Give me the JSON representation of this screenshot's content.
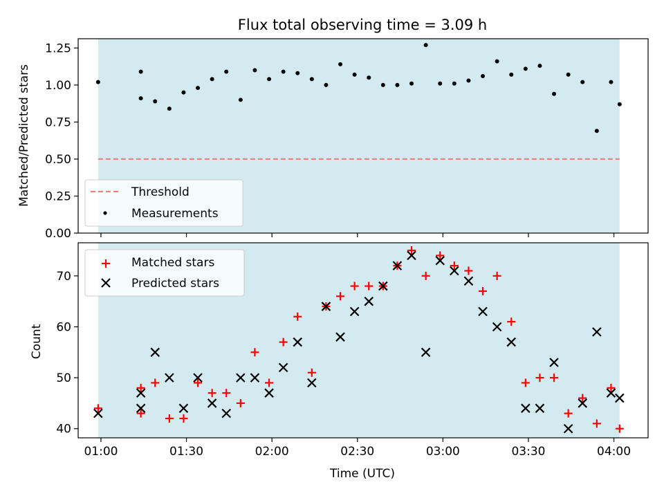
{
  "chart_data": [
    {
      "type": "scatter",
      "title": "Flux total observing time = 3.09 h",
      "ylabel": "Matched/Predicted stars",
      "xlabel": "",
      "ylim": [
        0.0,
        1.3125
      ],
      "yticks": [
        "0.00",
        "0.25",
        "0.50",
        "0.75",
        "1.00",
        "1.25"
      ],
      "xlim": [
        "00:52",
        "04:12"
      ],
      "shaded_span": [
        "00:59",
        "04:02"
      ],
      "shade_color": "#d3eaf0",
      "threshold": {
        "name": "Threshold",
        "value": 0.5,
        "color": "#f08080",
        "style": "dashed"
      },
      "series": [
        {
          "name": "Measurements",
          "color": "#000000",
          "x": [
            "00:59",
            "01:14",
            "01:14",
            "01:19",
            "01:24",
            "01:29",
            "01:34",
            "01:39",
            "01:44",
            "01:49",
            "01:54",
            "01:59",
            "02:04",
            "02:09",
            "02:14",
            "02:19",
            "02:24",
            "02:29",
            "02:34",
            "02:39",
            "02:44",
            "02:49",
            "02:54",
            "02:59",
            "03:04",
            "03:09",
            "03:14",
            "03:19",
            "03:24",
            "03:29",
            "03:34",
            "03:39",
            "03:44",
            "03:49",
            "03:54",
            "03:59",
            "04:02"
          ],
          "y": [
            1.02,
            1.09,
            0.91,
            0.89,
            0.84,
            0.95,
            0.98,
            1.04,
            1.09,
            0.9,
            1.1,
            1.04,
            1.09,
            1.08,
            1.04,
            1.0,
            1.14,
            1.07,
            1.05,
            1.0,
            1.0,
            1.01,
            1.27,
            1.01,
            1.01,
            1.03,
            1.06,
            1.16,
            1.07,
            1.11,
            1.13,
            0.94,
            1.07,
            1.02,
            0.69,
            1.02,
            0.87
          ]
        }
      ]
    },
    {
      "type": "scatter",
      "title": "",
      "ylabel": "Count",
      "xlabel": "Time (UTC)",
      "ylim": [
        38.2,
        76.5
      ],
      "yticks": [
        "40",
        "50",
        "60",
        "70"
      ],
      "xticks": [
        "01:00",
        "01:30",
        "02:00",
        "02:30",
        "03:00",
        "03:30",
        "04:00"
      ],
      "xlim": [
        "00:52",
        "04:12"
      ],
      "shaded_span": [
        "00:59",
        "04:02"
      ],
      "series": [
        {
          "name": "Matched stars",
          "marker": "+",
          "color": "#ff0000",
          "x": [
            "00:59",
            "01:14",
            "01:14",
            "01:19",
            "01:24",
            "01:29",
            "01:34",
            "01:39",
            "01:44",
            "01:49",
            "01:54",
            "01:59",
            "02:04",
            "02:09",
            "02:14",
            "02:19",
            "02:24",
            "02:29",
            "02:34",
            "02:39",
            "02:44",
            "02:49",
            "02:54",
            "02:59",
            "03:04",
            "03:09",
            "03:14",
            "03:19",
            "03:24",
            "03:29",
            "03:34",
            "03:39",
            "03:44",
            "03:49",
            "03:54",
            "03:59",
            "04:02"
          ],
          "y": [
            44,
            48,
            43,
            49,
            42,
            42,
            49,
            47,
            47,
            45,
            55,
            49,
            57,
            62,
            51,
            64,
            66,
            68,
            68,
            68,
            72,
            75,
            70,
            74,
            72,
            71,
            67,
            70,
            61,
            49,
            50,
            50,
            43,
            46,
            41,
            48,
            40
          ]
        },
        {
          "name": "Predicted stars",
          "marker": "x",
          "color": "#000000",
          "x": [
            "00:59",
            "01:14",
            "01:14",
            "01:19",
            "01:24",
            "01:29",
            "01:34",
            "01:39",
            "01:44",
            "01:49",
            "01:54",
            "01:59",
            "02:04",
            "02:09",
            "02:14",
            "02:19",
            "02:24",
            "02:29",
            "02:34",
            "02:39",
            "02:44",
            "02:49",
            "02:54",
            "02:59",
            "03:04",
            "03:09",
            "03:14",
            "03:19",
            "03:24",
            "03:29",
            "03:34",
            "03:39",
            "03:44",
            "03:49",
            "03:54",
            "03:59",
            "04:02"
          ],
          "y": [
            43,
            44,
            47,
            55,
            50,
            44,
            50,
            45,
            43,
            50,
            50,
            47,
            52,
            57,
            49,
            64,
            58,
            63,
            65,
            68,
            72,
            74,
            55,
            73,
            71,
            69,
            63,
            60,
            57,
            44,
            44,
            53,
            40,
            45,
            59,
            47,
            46
          ]
        }
      ]
    }
  ]
}
